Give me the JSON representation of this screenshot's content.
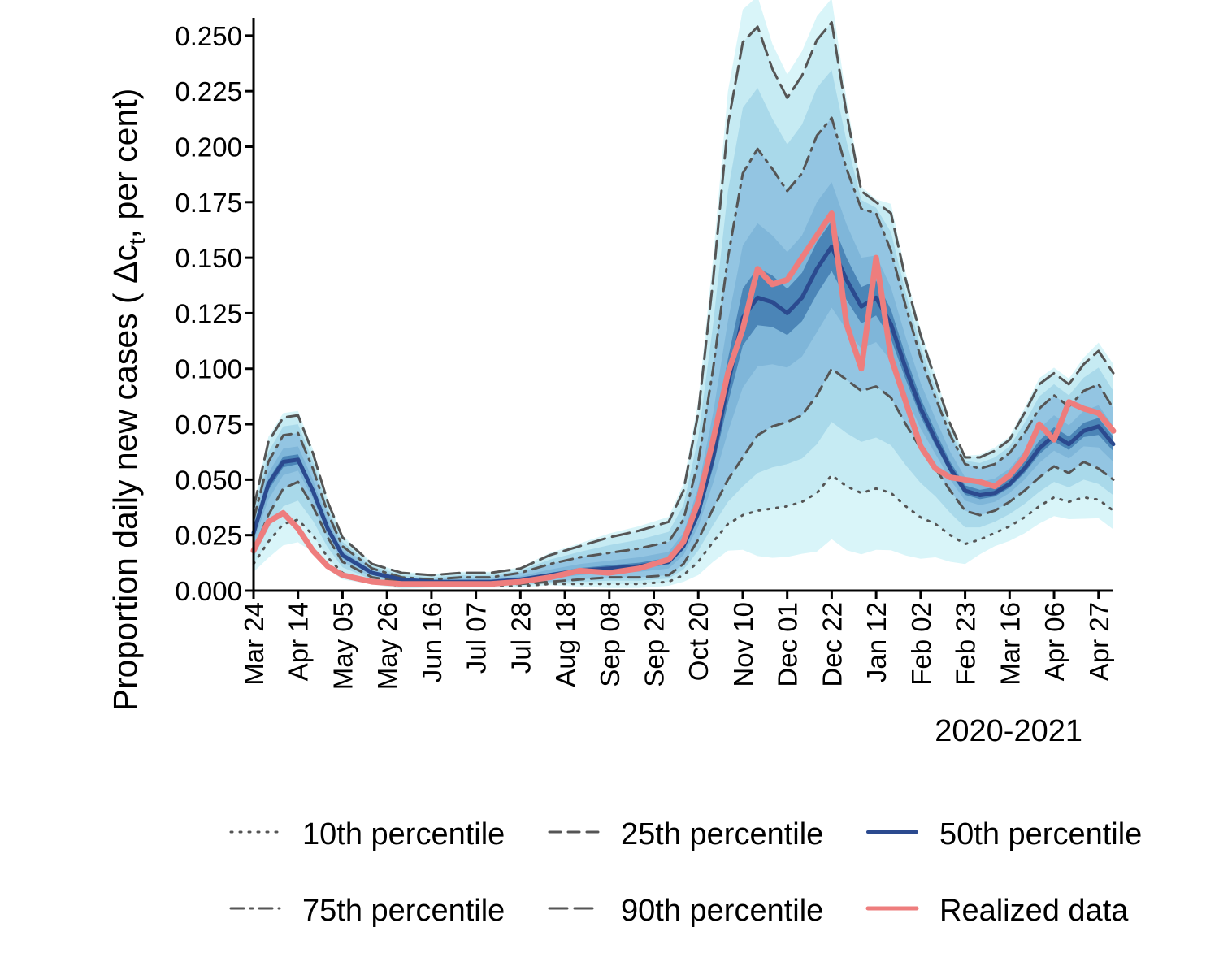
{
  "chart_data": {
    "type": "line",
    "title": "",
    "xlabel": "2020-2021",
    "ylabel": "Proportion daily new cases ( Δc",
    "ylabel_subscript": "t",
    "ylabel_suffix": ", per cent)",
    "ylim": [
      0,
      0.258
    ],
    "xlim": [
      0,
      406
    ],
    "y_ticks": [
      {
        "value": 0.0,
        "label": "0.000"
      },
      {
        "value": 0.025,
        "label": "0.025"
      },
      {
        "value": 0.05,
        "label": "0.050"
      },
      {
        "value": 0.075,
        "label": "0.075"
      },
      {
        "value": 0.1,
        "label": "0.100"
      },
      {
        "value": 0.125,
        "label": "0.125"
      },
      {
        "value": 0.15,
        "label": "0.150"
      },
      {
        "value": 0.175,
        "label": "0.175"
      },
      {
        "value": 0.2,
        "label": "0.200"
      },
      {
        "value": 0.225,
        "label": "0.225"
      },
      {
        "value": 0.25,
        "label": "0.250"
      }
    ],
    "x_ticks": [
      {
        "day": 0,
        "label": "Mar 24"
      },
      {
        "day": 21,
        "label": "Apr 14"
      },
      {
        "day": 42,
        "label": "May 05"
      },
      {
        "day": 63,
        "label": "May 26"
      },
      {
        "day": 84,
        "label": "Jun 16"
      },
      {
        "day": 105,
        "label": "Jul 07"
      },
      {
        "day": 126,
        "label": "Jul 28"
      },
      {
        "day": 147,
        "label": "Aug 18"
      },
      {
        "day": 168,
        "label": "Sep 08"
      },
      {
        "day": 189,
        "label": "Sep 29"
      },
      {
        "day": 210,
        "label": "Oct 20"
      },
      {
        "day": 231,
        "label": "Nov 10"
      },
      {
        "day": 252,
        "label": "Dec 01"
      },
      {
        "day": 273,
        "label": "Dec 22"
      },
      {
        "day": 294,
        "label": "Jan 12"
      },
      {
        "day": 315,
        "label": "Feb 02"
      },
      {
        "day": 336,
        "label": "Feb 23"
      },
      {
        "day": 357,
        "label": "Mar 16"
      },
      {
        "day": 378,
        "label": "Apr 06"
      },
      {
        "day": 399,
        "label": "Apr 27"
      }
    ],
    "x": [
      0,
      7,
      14,
      21,
      28,
      35,
      42,
      56,
      70,
      84,
      98,
      112,
      126,
      140,
      154,
      168,
      182,
      196,
      203,
      210,
      217,
      224,
      231,
      238,
      245,
      252,
      259,
      266,
      273,
      280,
      287,
      294,
      301,
      308,
      315,
      322,
      329,
      336,
      343,
      350,
      357,
      364,
      371,
      378,
      385,
      392,
      399,
      406
    ],
    "series": [
      {
        "name": "10th percentile",
        "style": "dotted",
        "color": "#555555",
        "values": [
          0.012,
          0.022,
          0.03,
          0.032,
          0.025,
          0.015,
          0.008,
          0.004,
          0.002,
          0.002,
          0.002,
          0.002,
          0.002,
          0.003,
          0.003,
          0.003,
          0.003,
          0.004,
          0.007,
          0.013,
          0.022,
          0.03,
          0.034,
          0.036,
          0.037,
          0.038,
          0.04,
          0.044,
          0.052,
          0.047,
          0.044,
          0.046,
          0.044,
          0.038,
          0.033,
          0.03,
          0.025,
          0.021,
          0.023,
          0.026,
          0.029,
          0.033,
          0.038,
          0.042,
          0.04,
          0.042,
          0.041,
          0.036
        ]
      },
      {
        "name": "25th percentile",
        "style": "dashed",
        "color": "#555555",
        "values": [
          0.018,
          0.034,
          0.046,
          0.049,
          0.038,
          0.024,
          0.013,
          0.006,
          0.004,
          0.003,
          0.003,
          0.003,
          0.003,
          0.004,
          0.005,
          0.006,
          0.006,
          0.007,
          0.012,
          0.023,
          0.037,
          0.05,
          0.06,
          0.07,
          0.074,
          0.076,
          0.079,
          0.088,
          0.1,
          0.095,
          0.09,
          0.092,
          0.087,
          0.075,
          0.064,
          0.055,
          0.045,
          0.036,
          0.034,
          0.036,
          0.04,
          0.045,
          0.051,
          0.056,
          0.053,
          0.058,
          0.055,
          0.05
        ]
      },
      {
        "name": "50th percentile",
        "style": "solid",
        "color": "#2b4a8f",
        "values": [
          0.026,
          0.048,
          0.058,
          0.059,
          0.045,
          0.028,
          0.016,
          0.008,
          0.005,
          0.004,
          0.004,
          0.004,
          0.005,
          0.007,
          0.009,
          0.01,
          0.011,
          0.013,
          0.02,
          0.035,
          0.06,
          0.093,
          0.123,
          0.132,
          0.13,
          0.125,
          0.132,
          0.145,
          0.155,
          0.14,
          0.128,
          0.132,
          0.12,
          0.1,
          0.082,
          0.068,
          0.055,
          0.045,
          0.043,
          0.044,
          0.048,
          0.055,
          0.064,
          0.07,
          0.066,
          0.072,
          0.074,
          0.066
        ]
      },
      {
        "name": "75th percentile",
        "style": "dashdot",
        "color": "#555555",
        "values": [
          0.032,
          0.058,
          0.07,
          0.071,
          0.055,
          0.035,
          0.02,
          0.01,
          0.006,
          0.005,
          0.006,
          0.006,
          0.008,
          0.012,
          0.015,
          0.017,
          0.019,
          0.022,
          0.032,
          0.058,
          0.1,
          0.15,
          0.188,
          0.199,
          0.19,
          0.18,
          0.188,
          0.205,
          0.213,
          0.19,
          0.172,
          0.17,
          0.153,
          0.128,
          0.105,
          0.087,
          0.07,
          0.057,
          0.055,
          0.057,
          0.062,
          0.071,
          0.082,
          0.088,
          0.083,
          0.09,
          0.093,
          0.082
        ]
      },
      {
        "name": "90th percentile",
        "style": "longdash",
        "color": "#555555",
        "values": [
          0.037,
          0.067,
          0.078,
          0.079,
          0.062,
          0.04,
          0.024,
          0.012,
          0.008,
          0.007,
          0.008,
          0.008,
          0.01,
          0.016,
          0.02,
          0.024,
          0.027,
          0.031,
          0.045,
          0.08,
          0.14,
          0.21,
          0.247,
          0.254,
          0.235,
          0.222,
          0.232,
          0.248,
          0.256,
          0.215,
          0.18,
          0.175,
          0.17,
          0.14,
          0.115,
          0.095,
          0.075,
          0.06,
          0.06,
          0.063,
          0.068,
          0.08,
          0.093,
          0.098,
          0.093,
          0.102,
          0.108,
          0.098
        ]
      },
      {
        "name": "Realized data",
        "style": "solid",
        "color": "#ee7d7d",
        "values": [
          0.018,
          0.031,
          0.035,
          0.028,
          0.018,
          0.011,
          0.007,
          0.004,
          0.003,
          0.003,
          0.003,
          0.003,
          0.004,
          0.006,
          0.009,
          0.008,
          0.01,
          0.014,
          0.022,
          0.04,
          0.068,
          0.098,
          0.118,
          0.145,
          0.138,
          0.14,
          0.15,
          0.16,
          0.17,
          0.12,
          0.1,
          0.15,
          0.105,
          0.085,
          0.065,
          0.055,
          0.051,
          0.05,
          0.049,
          0.047,
          0.052,
          0.06,
          0.075,
          0.068,
          0.085,
          0.082,
          0.08,
          0.072
        ]
      }
    ],
    "legend": {
      "position": "bottom",
      "entries": [
        {
          "label": "10th percentile",
          "style": "dotted"
        },
        {
          "label": "25th percentile",
          "style": "dashed"
        },
        {
          "label": "50th percentile",
          "style": "solid-blue"
        },
        {
          "label": "75th percentile",
          "style": "dashdot"
        },
        {
          "label": "90th percentile",
          "style": "longdash"
        },
        {
          "label": "Realized data",
          "style": "solid-red"
        }
      ]
    },
    "fan_colors": {
      "outer": "#d9f5f9",
      "mid": "#a9d9ea",
      "inner": "#7fb6d9",
      "core": "#4b85b7",
      "axis": "#000000",
      "percentile_line": "#555555",
      "median_line": "#2b4a8f",
      "realized_line": "#ee7d7d"
    }
  }
}
